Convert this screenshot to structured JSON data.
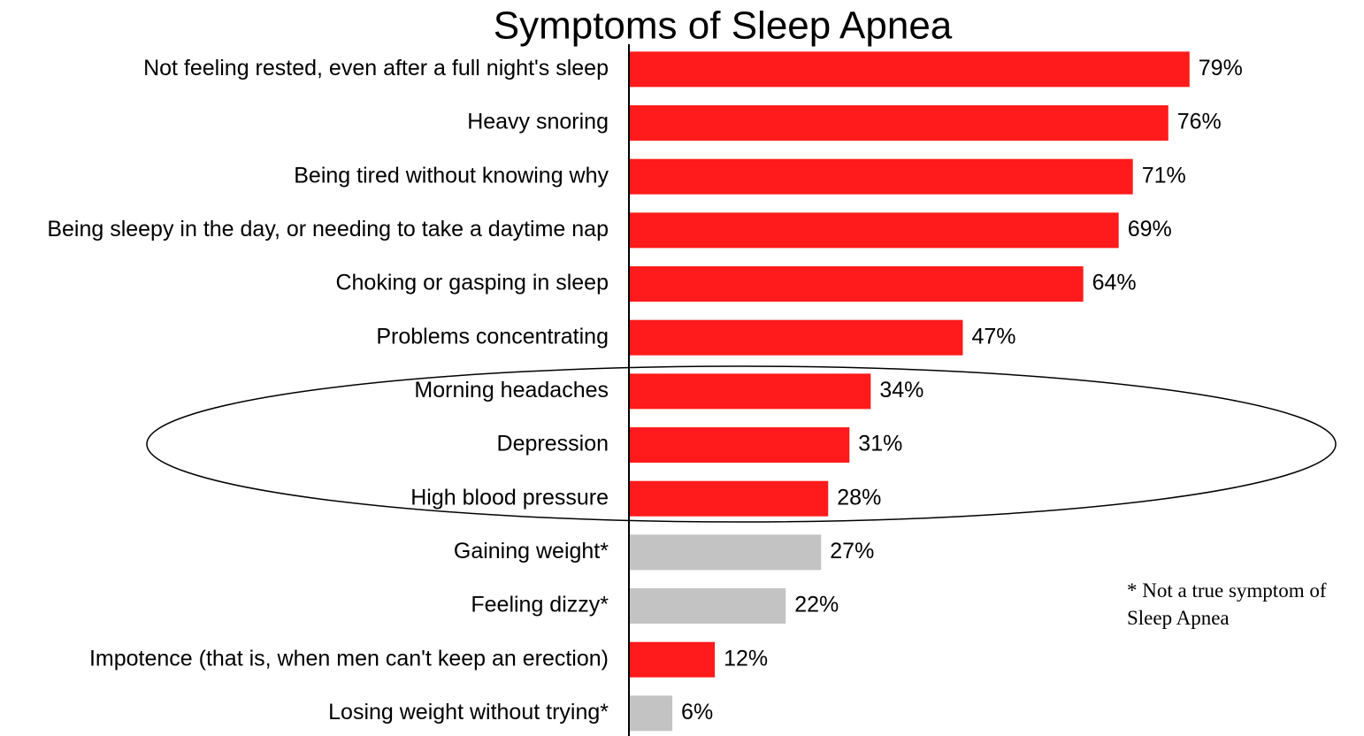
{
  "chart_data": {
    "type": "barh",
    "title": "Symptoms of Sleep Apnea",
    "categories": [
      "Not feeling rested, even after a full night's sleep",
      "Heavy snoring",
      "Being tired without knowing why",
      "Being sleepy in the day, or needing to take a daytime nap",
      "Choking or gasping in sleep",
      "Problems concentrating",
      "Morning headaches",
      "Depression",
      "High blood pressure",
      "Gaining weight*",
      "Feeling dizzy*",
      "Impotence (that is, when men can't keep an erection)",
      "Losing weight without trying*"
    ],
    "values": [
      79,
      76,
      71,
      69,
      64,
      47,
      34,
      31,
      28,
      27,
      22,
      12,
      6
    ],
    "value_labels": [
      "79%",
      "76%",
      "71%",
      "69%",
      "64%",
      "47%",
      "34%",
      "31%",
      "28%",
      "27%",
      "22%",
      "12%",
      "6%"
    ],
    "colors": [
      "#ff1b1b",
      "#ff1b1b",
      "#ff1b1b",
      "#ff1b1b",
      "#ff1b1b",
      "#ff1b1b",
      "#ff1b1b",
      "#ff1b1b",
      "#ff1b1b",
      "#c3c3c3",
      "#c3c3c3",
      "#ff1b1b",
      "#c3c3c3"
    ],
    "xlim": [
      0,
      100
    ],
    "annotation": "* Not a true symptom of Sleep Apnea"
  }
}
